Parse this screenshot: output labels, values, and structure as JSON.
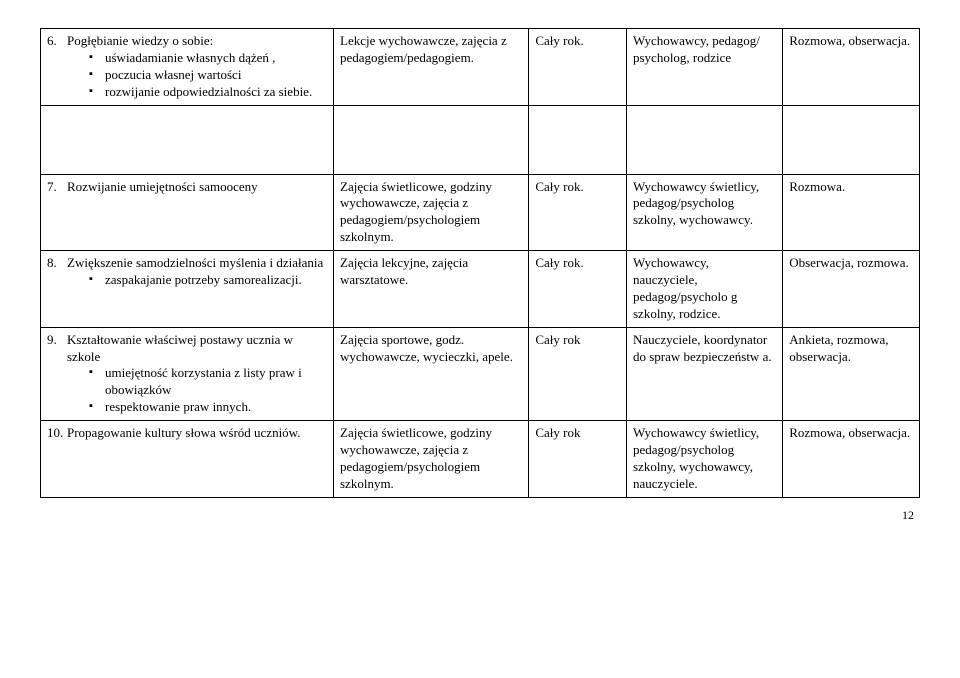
{
  "rows": [
    {
      "num": "6.",
      "title": "Pogłębianie wiedzy o sobie:",
      "bullets": [
        "uświadamianie własnych dążeń ,",
        "poczucia własnej wartości",
        "rozwijanie odpowiedzialności za siebie."
      ],
      "col2": "Lekcje wychowawcze, zajęcia z pedagogiem/pedagogiem.",
      "col3": "Cały rok.",
      "col4": "Wychowawcy, pedagog/ psycholog, rodzice",
      "col5": "Rozmowa, obserwacja."
    },
    {
      "num": "7.",
      "title": "Rozwijanie umiejętności samooceny",
      "bullets": [],
      "col2": "Zajęcia świetlicowe, godziny wychowawcze, zajęcia z pedagogiem/psychologiem szkolnym.",
      "col3": "Cały rok.",
      "col4": "Wychowawcy świetlicy, pedagog/psycholog szkolny, wychowawcy.",
      "col5": "Rozmowa."
    },
    {
      "num": "8.",
      "title": "Zwiększenie samodzielności myślenia i działania",
      "bullets": [
        "zaspakajanie potrzeby samorealizacji."
      ],
      "col2": "Zajęcia lekcyjne, zajęcia warsztatowe.",
      "col3": "Cały rok.",
      "col4": "Wychowawcy, nauczyciele, pedagog/psycholo g szkolny, rodzice.",
      "col5": "Obserwacja, rozmowa."
    },
    {
      "num": "9.",
      "title": "Kształtowanie właściwej postawy ucznia w szkole",
      "bullets": [
        "umiejętność korzystania z listy praw i obowiązków",
        "respektowanie praw innych."
      ],
      "col2": "Zajęcia sportowe, godz. wychowawcze, wycieczki, apele.",
      "col3": "Cały rok",
      "col4": "Nauczyciele, koordynator do spraw bezpieczeństw a.",
      "col5": "Ankieta, rozmowa, obserwacja."
    },
    {
      "num": "10.",
      "title": "Propagowanie kultury słowa wśród uczniów.",
      "bullets": [],
      "col2": "Zajęcia świetlicowe, godziny wychowawcze, zajęcia z pedagogiem/psychologiem szkolnym.",
      "col3": "Cały rok",
      "col4": "Wychowawcy świetlicy, pedagog/psycholog szkolny, wychowawcy, nauczyciele.",
      "col5": "Rozmowa, obserwacja."
    }
  ],
  "page_number": "12"
}
